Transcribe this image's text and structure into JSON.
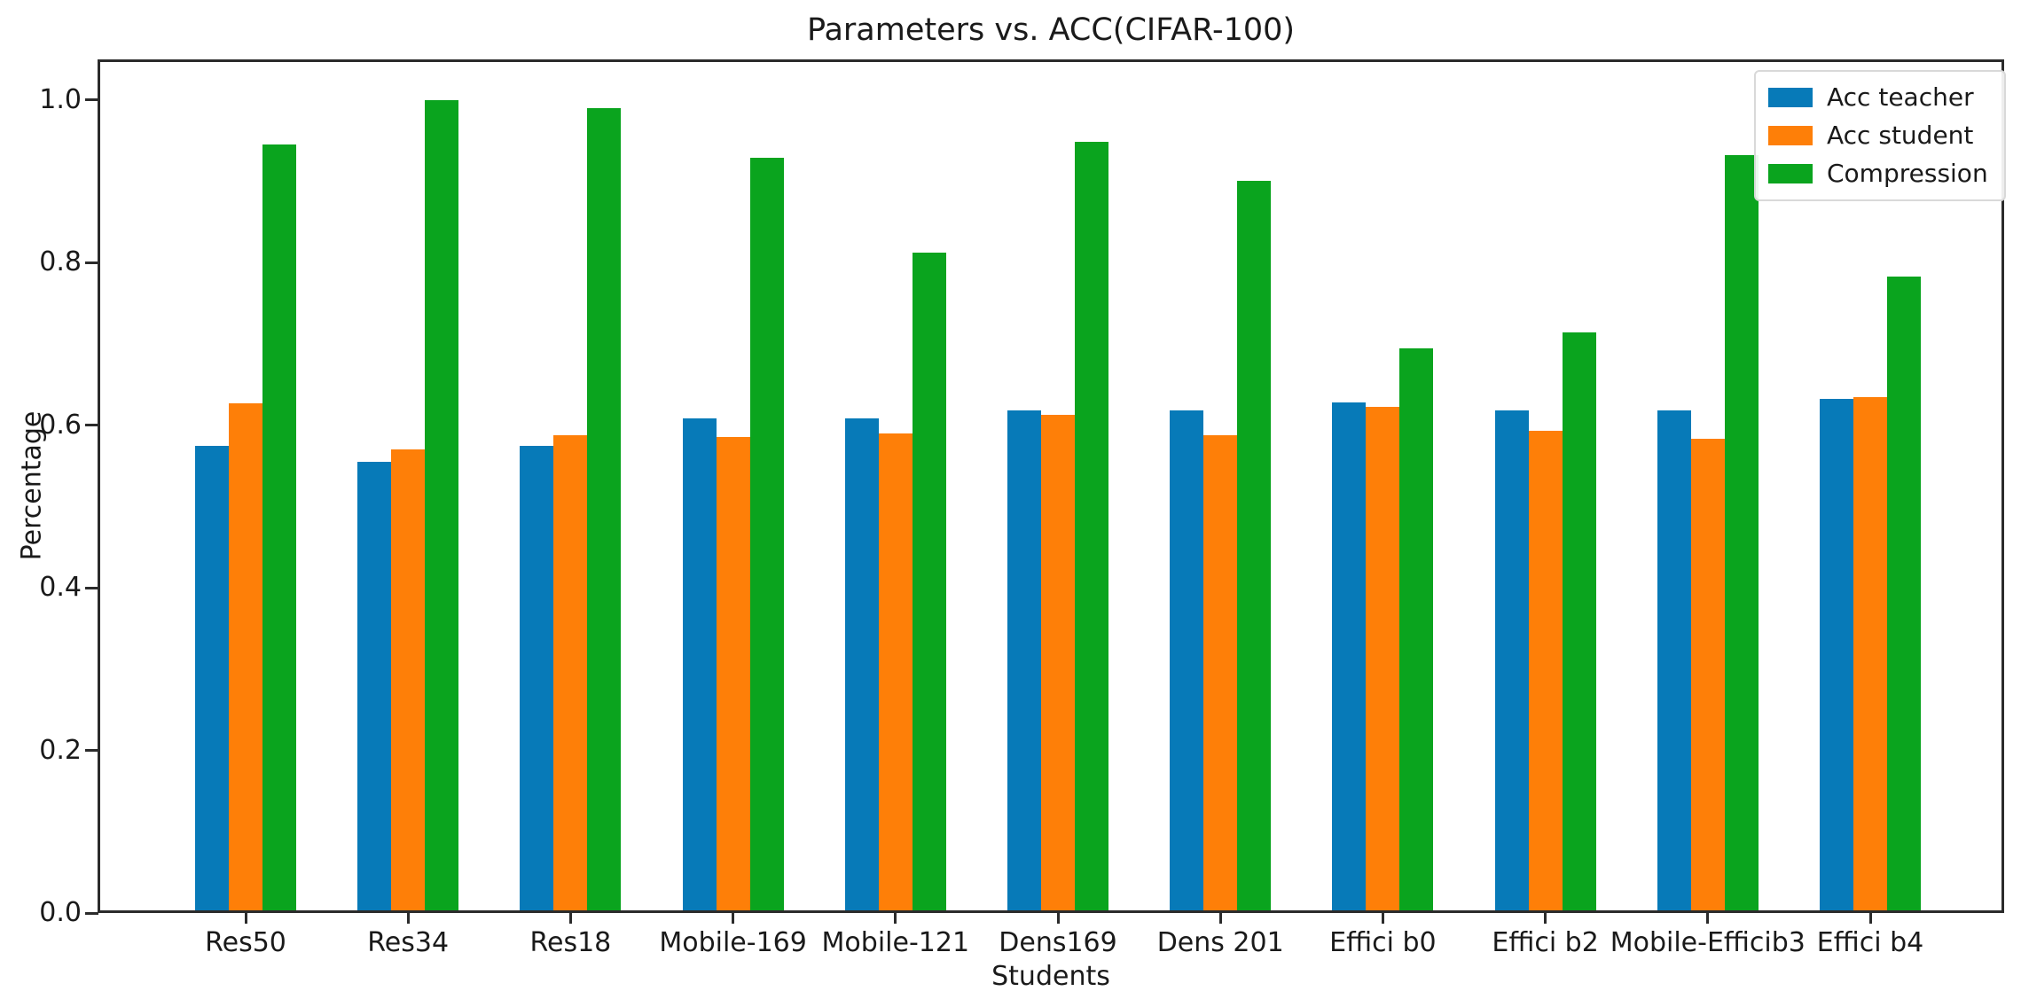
{
  "chart_data": {
    "type": "bar",
    "title": "Parameters vs. ACC(CIFAR-100)",
    "xlabel": "Students",
    "ylabel": "Percentage",
    "categories": [
      "Res50",
      "Res34",
      "Res18",
      "Mobile-169",
      "Mobile-121",
      "Dens169",
      "Dens 201",
      "Effici b0",
      "Effici b2",
      "Mobile-Efficib3",
      "Effici b4"
    ],
    "series": [
      {
        "name": "Acc teacher",
        "color": "#077ab8",
        "values": [
          0.575,
          0.555,
          0.575,
          0.608,
          0.608,
          0.618,
          0.618,
          0.628,
          0.618,
          0.618,
          0.632
        ]
      },
      {
        "name": "Acc student",
        "color": "#fe7f08",
        "values": [
          0.627,
          0.57,
          0.588,
          0.585,
          0.59,
          0.613,
          0.588,
          0.623,
          0.593,
          0.583,
          0.635
        ]
      },
      {
        "name": "Compression",
        "color": "#0aa41e",
        "values": [
          0.945,
          1.0,
          0.99,
          0.929,
          0.812,
          0.949,
          0.901,
          0.695,
          0.714,
          0.932,
          0.783
        ]
      }
    ],
    "ylim": [
      0,
      1.05
    ],
    "yticks": [
      "0.0",
      "0.2",
      "0.4",
      "0.6",
      "0.8",
      "1.0"
    ],
    "grid": false,
    "legend_position": "upper right"
  }
}
